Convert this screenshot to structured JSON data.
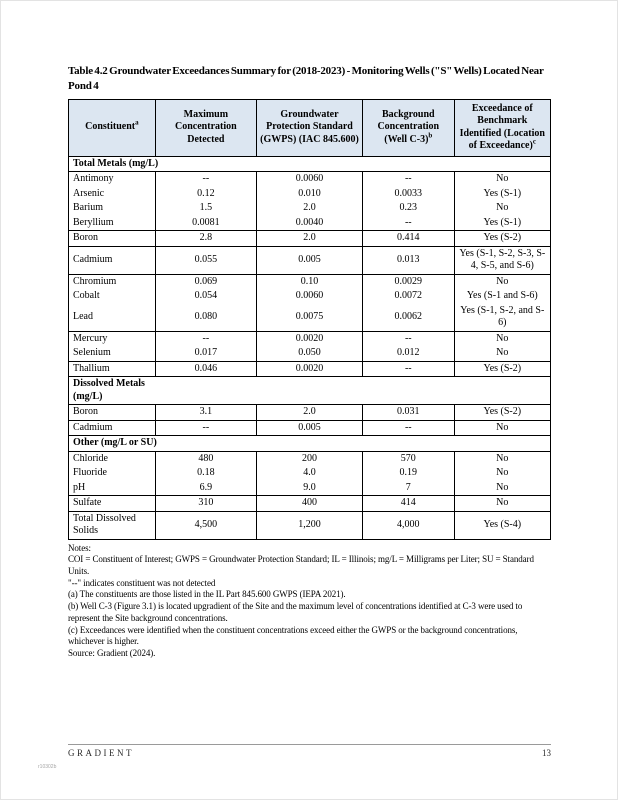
{
  "document": {
    "title": "Table 4.2 Groundwater Exceedances Summary for (2018-2023) - Monitoring Wells (\"S\" Wells) Located Near Pond 4"
  },
  "table": {
    "header_bg": "#dce6f1",
    "columns": [
      {
        "label": "Constituent",
        "sup": "a"
      },
      {
        "label": "Maximum Concentration Detected",
        "sup": ""
      },
      {
        "label": "Groundwater Protection Standard (GWPS) (IAC 845.600)",
        "sup": ""
      },
      {
        "label": "Background Concentration (Well C-3)",
        "sup": "b"
      },
      {
        "label": "Exceedance of Benchmark Identified (Location of Exceedance)",
        "sup": "c"
      }
    ],
    "rows": [
      {
        "section": "Total Metals (mg/L)"
      },
      {
        "constituent": "Antimony",
        "max": "--",
        "gwps": "0.0060",
        "background": "--",
        "exceedance": "No"
      },
      {
        "constituent": "Arsenic",
        "max": "0.12",
        "gwps": "0.010",
        "background": "0.0033",
        "exceedance": "Yes (S-1)"
      },
      {
        "constituent": "Barium",
        "max": "1.5",
        "gwps": "2.0",
        "background": "0.23",
        "exceedance": "No"
      },
      {
        "constituent": "Beryllium",
        "max": "0.0081",
        "gwps": "0.0040",
        "background": "--",
        "exceedance": "Yes (S-1)",
        "group_end": true
      },
      {
        "constituent": "Boron",
        "max": "2.8",
        "gwps": "2.0",
        "background": "0.414",
        "exceedance": "Yes (S-2)",
        "group_end": true
      },
      {
        "constituent": "Cadmium",
        "max": "0.055",
        "gwps": "0.005",
        "background": "0.013",
        "exceedance": "Yes (S-1, S-2, S-3, S-4, S-5, and S-6)",
        "group_end": true
      },
      {
        "constituent": "Chromium",
        "max": "0.069",
        "gwps": "0.10",
        "background": "0.0029",
        "exceedance": "No"
      },
      {
        "constituent": "Cobalt",
        "max": "0.054",
        "gwps": "0.0060",
        "background": "0.0072",
        "exceedance": "Yes (S-1 and S-6)"
      },
      {
        "constituent": "Lead",
        "max": "0.080",
        "gwps": "0.0075",
        "background": "0.0062",
        "exceedance": "Yes (S-1, S-2, and S-6)",
        "group_end": true
      },
      {
        "constituent": "Mercury",
        "max": "--",
        "gwps": "0.0020",
        "background": "--",
        "exceedance": "No"
      },
      {
        "constituent": "Selenium",
        "max": "0.017",
        "gwps": "0.050",
        "background": "0.012",
        "exceedance": "No",
        "group_end": true
      },
      {
        "constituent": "Thallium",
        "max": "0.046",
        "gwps": "0.0020",
        "background": "--",
        "exceedance": "Yes (S-2)",
        "group_end": true
      },
      {
        "section": "Dissolved Metals (mg/L)"
      },
      {
        "constituent": "Boron",
        "max": "3.1",
        "gwps": "2.0",
        "background": "0.031",
        "exceedance": "Yes (S-2)",
        "group_end": true
      },
      {
        "constituent": "Cadmium",
        "max": "--",
        "gwps": "0.005",
        "background": "--",
        "exceedance": "No",
        "group_end": true
      },
      {
        "section": "Other (mg/L or SU)"
      },
      {
        "constituent": "Chloride",
        "max": "480",
        "gwps": "200",
        "background": "570",
        "exceedance": "No"
      },
      {
        "constituent": "Fluoride",
        "max": "0.18",
        "gwps": "4.0",
        "background": "0.19",
        "exceedance": "No"
      },
      {
        "constituent": "pH",
        "max": "6.9",
        "gwps": "9.0",
        "background": "7",
        "exceedance": "No",
        "group_end": true
      },
      {
        "constituent": "Sulfate",
        "max": "310",
        "gwps": "400",
        "background": "414",
        "exceedance": "No",
        "group_end": true
      },
      {
        "constituent": "Total Dissolved Solids",
        "max": "4,500",
        "gwps": "1,200",
        "background": "4,000",
        "exceedance": "Yes (S-4)",
        "group_end": true
      }
    ]
  },
  "notes": {
    "label": "Notes:",
    "lines": [
      "COI = Constituent of Interest; GWPS = Groundwater Protection Standard; IL = Illinois; mg/L = Milligrams per Liter; SU = Standard Units.",
      "\"--\" indicates constituent was not detected",
      "(a) The constituents are those listed in the IL Part 845.600 GWPS (IEPA 2021).",
      "(b) Well C-3 (Figure 3.1) is located upgradient of the Site and the maximum level of concentrations identified at C-3 were used to represent the Site background concentrations.",
      "(c) Exceedances were identified when the constituent concentrations exceed either the GWPS or the background concentrations, whichever is higher.",
      "Source: Gradient (2024)."
    ]
  },
  "footer": {
    "logo": "GRADIENT",
    "page_number": "13",
    "doc_ref": "r10302b"
  }
}
